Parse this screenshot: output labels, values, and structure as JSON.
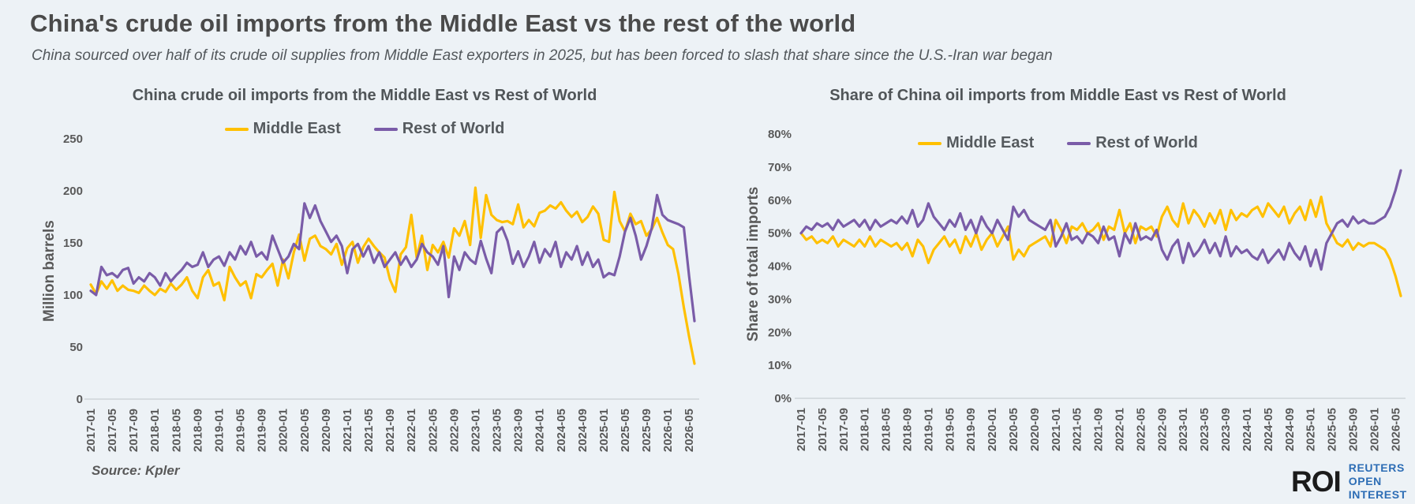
{
  "page": {
    "title": "China's crude oil imports from the Middle East vs the rest of the world",
    "subtitle": "China sourced over half of its crude oil supplies from Middle East exporters in 2025, but has been forced to slash that share since the U.S.-Iran war began",
    "source_label": "Source:  Kpler",
    "logo": {
      "roi": "ROI",
      "line1": "REUTERS OPEN",
      "line2": "INTEREST"
    }
  },
  "colors": {
    "middle_east": "#FFC000",
    "rest_of_world": "#7A5CA8",
    "background": "#EDF2F6",
    "axis_text": "#595959",
    "baseline": "#C9CED4",
    "logo_blue": "#2D6DB5"
  },
  "chart_data": [
    {
      "type": "line",
      "title": "China crude oil imports from the Middle East vs Rest of World",
      "ylabel": "Million barrels",
      "ylim": [
        0,
        250
      ],
      "yticks": [
        0,
        50,
        100,
        150,
        200,
        250
      ],
      "ytick_suffix": "",
      "xtick_every": 4,
      "grid": false,
      "legend_position": "top-center",
      "categories": [
        "2017-01",
        "2017-02",
        "2017-03",
        "2017-04",
        "2017-05",
        "2017-06",
        "2017-07",
        "2017-08",
        "2017-09",
        "2017-10",
        "2017-11",
        "2017-12",
        "2018-01",
        "2018-02",
        "2018-03",
        "2018-04",
        "2018-05",
        "2018-06",
        "2018-07",
        "2018-08",
        "2018-09",
        "2018-10",
        "2018-11",
        "2018-12",
        "2019-01",
        "2019-02",
        "2019-03",
        "2019-04",
        "2019-05",
        "2019-06",
        "2019-07",
        "2019-08",
        "2019-09",
        "2019-10",
        "2019-11",
        "2019-12",
        "2020-01",
        "2020-02",
        "2020-03",
        "2020-04",
        "2020-05",
        "2020-06",
        "2020-07",
        "2020-08",
        "2020-09",
        "2020-10",
        "2020-11",
        "2020-12",
        "2021-01",
        "2021-02",
        "2021-03",
        "2021-04",
        "2021-05",
        "2021-06",
        "2021-07",
        "2021-08",
        "2021-09",
        "2021-10",
        "2021-11",
        "2021-12",
        "2022-01",
        "2022-02",
        "2022-03",
        "2022-04",
        "2022-05",
        "2022-06",
        "2022-07",
        "2022-08",
        "2022-09",
        "2022-10",
        "2022-11",
        "2022-12",
        "2023-01",
        "2023-02",
        "2023-03",
        "2023-04",
        "2023-05",
        "2023-06",
        "2023-07",
        "2023-08",
        "2023-09",
        "2023-10",
        "2023-11",
        "2023-12",
        "2024-01",
        "2024-02",
        "2024-03",
        "2024-04",
        "2024-05",
        "2024-06",
        "2024-07",
        "2024-08",
        "2024-09",
        "2024-10",
        "2024-11",
        "2024-12",
        "2025-01",
        "2025-02",
        "2025-03",
        "2025-04",
        "2025-05",
        "2025-06",
        "2025-07",
        "2025-08",
        "2025-09",
        "2025-10",
        "2025-11",
        "2025-12",
        "2026-01",
        "2026-02",
        "2026-03",
        "2026-04",
        "2026-05",
        "2026-06"
      ],
      "series": [
        {
          "name": "Middle East",
          "color": "middle_east",
          "values": [
            110,
            101,
            113,
            106,
            114,
            104,
            109,
            105,
            104,
            102,
            109,
            104,
            100,
            106,
            103,
            111,
            105,
            110,
            117,
            104,
            97,
            117,
            124,
            109,
            112,
            95,
            127,
            117,
            109,
            113,
            97,
            120,
            117,
            124,
            130,
            109,
            134,
            116,
            141,
            158,
            133,
            154,
            157,
            147,
            144,
            139,
            149,
            129,
            145,
            151,
            131,
            146,
            154,
            147,
            141,
            136,
            115,
            103,
            139,
            146,
            177,
            136,
            157,
            124,
            148,
            141,
            151,
            136,
            164,
            157,
            171,
            148,
            203,
            155,
            196,
            177,
            172,
            170,
            171,
            168,
            187,
            165,
            172,
            166,
            179,
            181,
            186,
            183,
            189,
            181,
            175,
            180,
            170,
            175,
            185,
            178,
            153,
            151,
            199,
            171,
            161,
            178,
            168,
            171,
            157,
            163,
            174,
            160,
            148,
            144,
            120,
            88,
            60,
            34
          ]
        },
        {
          "name": "Rest of World",
          "color": "rest_of_world",
          "values": [
            104,
            100,
            127,
            119,
            121,
            117,
            124,
            126,
            111,
            117,
            113,
            121,
            117,
            109,
            121,
            113,
            119,
            124,
            131,
            127,
            129,
            141,
            127,
            134,
            137,
            128,
            141,
            134,
            147,
            139,
            151,
            137,
            141,
            134,
            157,
            144,
            131,
            137,
            149,
            144,
            188,
            174,
            186,
            171,
            161,
            151,
            157,
            147,
            121,
            144,
            149,
            137,
            147,
            131,
            141,
            127,
            134,
            141,
            129,
            137,
            127,
            134,
            149,
            141,
            137,
            129,
            147,
            98,
            137,
            124,
            141,
            134,
            130,
            152,
            135,
            121,
            160,
            165,
            152,
            130,
            142,
            127,
            137,
            151,
            131,
            144,
            137,
            151,
            127,
            141,
            134,
            147,
            129,
            141,
            127,
            134,
            117,
            121,
            119,
            137,
            161,
            174,
            157,
            134,
            147,
            164,
            196,
            177,
            172,
            170,
            168,
            165,
            118,
            75
          ]
        }
      ]
    },
    {
      "type": "line",
      "title": "Share of China oil imports from Middle East vs  Rest of World",
      "ylabel": "Share of total imports",
      "ylim": [
        0,
        80
      ],
      "yticks": [
        0,
        10,
        20,
        30,
        40,
        50,
        60,
        70,
        80
      ],
      "ytick_suffix": "%",
      "xtick_every": 4,
      "grid": false,
      "legend_position": "top-center",
      "categories": [
        "2017-01",
        "2017-02",
        "2017-03",
        "2017-04",
        "2017-05",
        "2017-06",
        "2017-07",
        "2017-08",
        "2017-09",
        "2017-10",
        "2017-11",
        "2017-12",
        "2018-01",
        "2018-02",
        "2018-03",
        "2018-04",
        "2018-05",
        "2018-06",
        "2018-07",
        "2018-08",
        "2018-09",
        "2018-10",
        "2018-11",
        "2018-12",
        "2019-01",
        "2019-02",
        "2019-03",
        "2019-04",
        "2019-05",
        "2019-06",
        "2019-07",
        "2019-08",
        "2019-09",
        "2019-10",
        "2019-11",
        "2019-12",
        "2020-01",
        "2020-02",
        "2020-03",
        "2020-04",
        "2020-05",
        "2020-06",
        "2020-07",
        "2020-08",
        "2020-09",
        "2020-10",
        "2020-11",
        "2020-12",
        "2021-01",
        "2021-02",
        "2021-03",
        "2021-04",
        "2021-05",
        "2021-06",
        "2021-07",
        "2021-08",
        "2021-09",
        "2021-10",
        "2021-11",
        "2021-12",
        "2022-01",
        "2022-02",
        "2022-03",
        "2022-04",
        "2022-05",
        "2022-06",
        "2022-07",
        "2022-08",
        "2022-09",
        "2022-10",
        "2022-11",
        "2022-12",
        "2023-01",
        "2023-02",
        "2023-03",
        "2023-04",
        "2023-05",
        "2023-06",
        "2023-07",
        "2023-08",
        "2023-09",
        "2023-10",
        "2023-11",
        "2023-12",
        "2024-01",
        "2024-02",
        "2024-03",
        "2024-04",
        "2024-05",
        "2024-06",
        "2024-07",
        "2024-08",
        "2024-09",
        "2024-10",
        "2024-11",
        "2024-12",
        "2025-01",
        "2025-02",
        "2025-03",
        "2025-04",
        "2025-05",
        "2025-06",
        "2025-07",
        "2025-08",
        "2025-09",
        "2025-10",
        "2025-11",
        "2025-12",
        "2026-01",
        "2026-02",
        "2026-03",
        "2026-04",
        "2026-05",
        "2026-06"
      ],
      "series": [
        {
          "name": "Middle East",
          "color": "middle_east",
          "values": [
            50,
            48,
            49,
            47,
            48,
            47,
            49,
            46,
            48,
            47,
            46,
            48,
            46,
            49,
            46,
            48,
            47,
            46,
            47,
            45,
            47,
            43,
            48,
            46,
            41,
            45,
            47,
            49,
            46,
            48,
            44,
            49,
            46,
            50,
            45,
            48,
            50,
            46,
            49,
            52,
            42,
            45,
            43,
            46,
            47,
            48,
            49,
            46,
            54,
            51,
            47,
            52,
            51,
            53,
            50,
            51,
            53,
            48,
            52,
            51,
            57,
            50,
            53,
            47,
            52,
            51,
            52,
            49,
            55,
            58,
            54,
            52,
            59,
            53,
            57,
            55,
            52,
            56,
            53,
            57,
            51,
            57,
            54,
            56,
            55,
            57,
            58,
            55,
            59,
            57,
            55,
            58,
            53,
            56,
            58,
            54,
            60,
            55,
            61,
            53,
            50,
            47,
            46,
            48,
            45,
            47,
            46,
            47,
            47,
            46,
            45,
            42,
            37,
            31
          ]
        },
        {
          "name": "Rest of World",
          "color": "rest_of_world",
          "values": [
            50,
            52,
            51,
            53,
            52,
            53,
            51,
            54,
            52,
            53,
            54,
            52,
            54,
            51,
            54,
            52,
            53,
            54,
            53,
            55,
            53,
            57,
            52,
            54,
            59,
            55,
            53,
            51,
            54,
            52,
            56,
            51,
            54,
            50,
            55,
            52,
            50,
            54,
            51,
            48,
            58,
            55,
            57,
            54,
            53,
            52,
            51,
            54,
            46,
            49,
            53,
            48,
            49,
            47,
            50,
            49,
            47,
            52,
            48,
            49,
            43,
            50,
            47,
            53,
            48,
            49,
            48,
            51,
            45,
            42,
            46,
            48,
            41,
            47,
            43,
            45,
            48,
            44,
            47,
            43,
            49,
            43,
            46,
            44,
            45,
            43,
            42,
            45,
            41,
            43,
            45,
            42,
            47,
            44,
            42,
            46,
            40,
            45,
            39,
            47,
            50,
            53,
            54,
            52,
            55,
            53,
            54,
            53,
            53,
            54,
            55,
            58,
            63,
            69
          ]
        }
      ]
    }
  ]
}
